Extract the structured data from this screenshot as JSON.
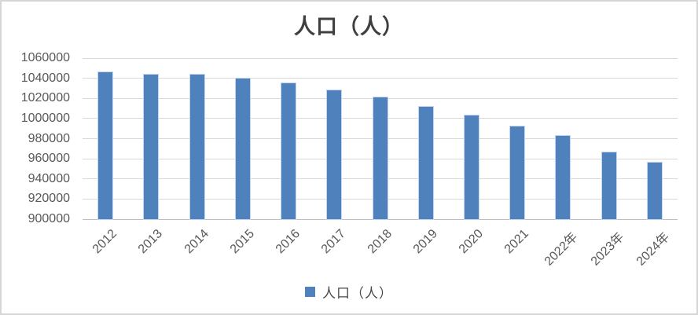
{
  "window": {
    "background": "#ffffff",
    "border_color": "#d6d6d6"
  },
  "chart_data": {
    "type": "bar",
    "title": "人口（人）",
    "legend_label": "人口（人）",
    "legend_position": "bottom",
    "categories": [
      "2012",
      "2013",
      "2014",
      "2015",
      "2016",
      "2017",
      "2018",
      "2019",
      "2020",
      "2021",
      "2022年",
      "2023年",
      "2024年"
    ],
    "series": [
      {
        "name": "人口（人）",
        "values": [
          1046000,
          1044000,
          1044000,
          1040000,
          1035000,
          1028000,
          1021000,
          1012000,
          1003000,
          992000,
          983000,
          966000,
          956000
        ]
      }
    ],
    "xlabel": "",
    "ylabel": "",
    "ylim": [
      900000,
      1060000
    ],
    "ytick_step": 20000,
    "yticks": [
      "1060000",
      "1040000",
      "1020000",
      "1000000",
      "980000",
      "960000",
      "940000",
      "920000",
      "900000"
    ],
    "grid": "horizontal",
    "bar_color": "#4F81BD",
    "bar_edge_color": "#c4d6ea",
    "gridline_color": "#d9d9d9",
    "axis_line_color": "#bdbdbd",
    "tick_label_color": "#595959",
    "title_color": "#3f3f3f"
  }
}
